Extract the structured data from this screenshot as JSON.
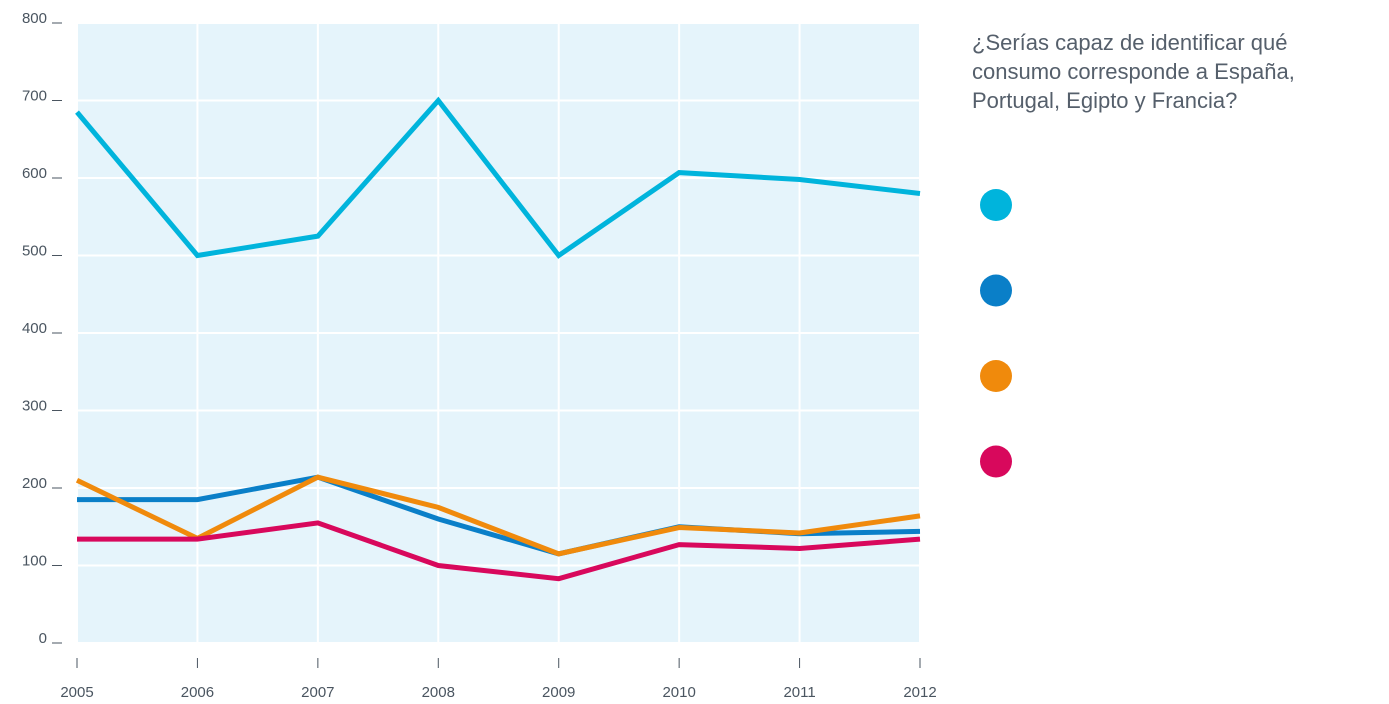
{
  "chart_data": {
    "type": "line",
    "question": "¿Serías capaz de identificar qué consumo corresponde a España, Portugal, Egipto y Francia?",
    "x": [
      2005,
      2006,
      2007,
      2008,
      2009,
      2010,
      2011,
      2012
    ],
    "xlim": [
      2005,
      2012
    ],
    "xticks": [
      2005,
      2006,
      2007,
      2008,
      2009,
      2010,
      2011,
      2012
    ],
    "ylim": [
      0,
      800
    ],
    "yticks": [
      0,
      100,
      200,
      300,
      400,
      500,
      600,
      700,
      800
    ],
    "grid": true,
    "background": "#e5f4fb",
    "series": [
      {
        "color": "#00b4dc",
        "values": [
          685,
          500,
          525,
          700,
          500,
          607,
          598,
          580
        ]
      },
      {
        "color": "#0a7fc8",
        "values": [
          185,
          185,
          214,
          160,
          115,
          150,
          141,
          144
        ]
      },
      {
        "color": "#f08a0c",
        "values": [
          210,
          135,
          214,
          175,
          115,
          149,
          142,
          164
        ]
      },
      {
        "color": "#d8085c",
        "values": [
          134,
          134,
          155,
          100,
          83,
          127,
          122,
          134
        ]
      }
    ]
  }
}
